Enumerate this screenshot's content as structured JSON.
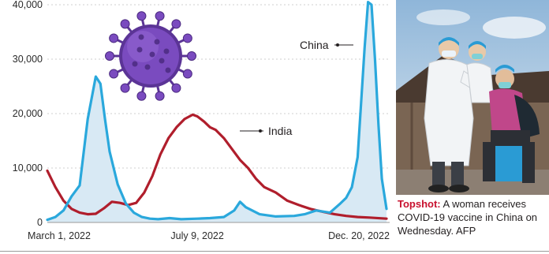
{
  "chart_data": {
    "type": "area",
    "x_ticks": [
      "March 1, 2022",
      "July 9, 2022",
      "Dec. 20, 2022"
    ],
    "ylim": [
      0,
      40000
    ],
    "y_ticks": [
      0,
      10000,
      20000,
      30000,
      40000
    ],
    "y_tick_labels": [
      "0",
      "10,000",
      "20,000",
      "30,000",
      "40,000"
    ],
    "grid": true,
    "series": [
      {
        "name": "China",
        "color": "#2aa8dc",
        "fill": "#d8e9f4",
        "x": [
          "2022-03-01",
          "2022-03-08",
          "2022-03-15",
          "2022-03-22",
          "2022-03-29",
          "2022-04-05",
          "2022-04-12",
          "2022-04-16",
          "2022-04-20",
          "2022-04-24",
          "2022-05-01",
          "2022-05-08",
          "2022-05-15",
          "2022-05-22",
          "2022-05-29",
          "2022-06-05",
          "2022-06-15",
          "2022-06-25",
          "2022-07-09",
          "2022-07-20",
          "2022-08-01",
          "2022-08-10",
          "2022-08-15",
          "2022-08-20",
          "2022-09-01",
          "2022-09-15",
          "2022-10-01",
          "2022-10-10",
          "2022-10-20",
          "2022-11-01",
          "2022-11-10",
          "2022-11-15",
          "2022-11-20",
          "2022-11-25",
          "2022-11-28",
          "2022-12-01",
          "2022-12-04",
          "2022-12-07",
          "2022-12-10",
          "2022-12-13",
          "2022-12-16",
          "2022-12-20"
        ],
        "values": [
          500,
          1000,
          2200,
          4800,
          6800,
          19000,
          26800,
          25500,
          19000,
          13000,
          7000,
          3500,
          1800,
          1000,
          700,
          600,
          800,
          600,
          700,
          800,
          1000,
          2200,
          3800,
          2800,
          1500,
          1100,
          1200,
          1500,
          2200,
          1800,
          3500,
          4500,
          6500,
          12000,
          22000,
          32000,
          40500,
          40000,
          30000,
          18000,
          8000,
          2500
        ]
      },
      {
        "name": "India",
        "color": "#b01e2c",
        "x": [
          "2022-03-01",
          "2022-03-08",
          "2022-03-15",
          "2022-03-22",
          "2022-03-29",
          "2022-04-05",
          "2022-04-12",
          "2022-04-19",
          "2022-04-26",
          "2022-05-03",
          "2022-05-10",
          "2022-05-17",
          "2022-05-24",
          "2022-05-31",
          "2022-06-07",
          "2022-06-14",
          "2022-06-21",
          "2022-06-28",
          "2022-07-05",
          "2022-07-09",
          "2022-07-15",
          "2022-07-20",
          "2022-07-25",
          "2022-08-01",
          "2022-08-08",
          "2022-08-15",
          "2022-08-22",
          "2022-08-29",
          "2022-09-05",
          "2022-09-15",
          "2022-09-25",
          "2022-10-05",
          "2022-10-15",
          "2022-10-25",
          "2022-11-05",
          "2022-11-15",
          "2022-11-25",
          "2022-12-05",
          "2022-12-20"
        ],
        "values": [
          9500,
          6500,
          4000,
          2500,
          1800,
          1500,
          1600,
          2600,
          3800,
          3600,
          3200,
          3600,
          5500,
          8500,
          12500,
          15500,
          17500,
          19000,
          19800,
          19500,
          18500,
          17500,
          17000,
          15500,
          13500,
          11500,
          10000,
          8000,
          6500,
          5500,
          4000,
          3200,
          2500,
          2000,
          1500,
          1200,
          1000,
          900,
          700
        ]
      }
    ]
  },
  "photo": {
    "alt_subject": "vaccination",
    "sky_color": "#b9d3e6",
    "roof_color": "#4a3a30",
    "coat_color": "#f2f4f6",
    "glove_color": "#2a9bd4"
  },
  "caption": {
    "head": "Topshot:",
    "body": " A woman receives COVID-19 vaccine in China on Wednesday.  AFP"
  },
  "icon": {
    "name": "coronavirus-icon",
    "color": "#6b3fa0"
  }
}
